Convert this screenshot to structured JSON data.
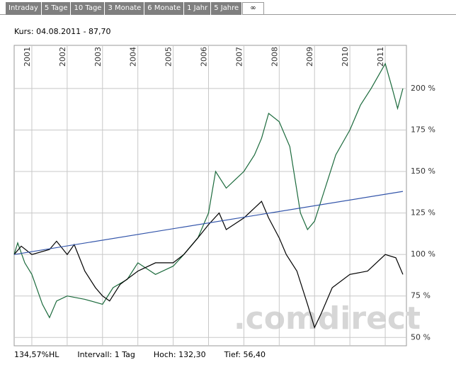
{
  "tabs": [
    "Intraday",
    "5 Tage",
    "10 Tage",
    "3 Monate",
    "6 Monate",
    "1 Jahr",
    "5 Jahre",
    "∞"
  ],
  "header": "Kurs: 04.08.2011 - 87,70",
  "watermark": ".comdirect",
  "footer": [
    "134,57%HL",
    "Intervall: 1 Tag",
    "Hoch: 132,30",
    "Tief: 56,40"
  ],
  "chart_data": {
    "type": "line",
    "xlim": [
      2000.5,
      2011.6
    ],
    "ylim": [
      45,
      226
    ],
    "xticks": [
      2001,
      2002,
      2003,
      2004,
      2005,
      2006,
      2007,
      2008,
      2009,
      2010,
      2011
    ],
    "yticks": [
      {
        "value": 50,
        "label": "50 %"
      },
      {
        "value": 75,
        "label": "75 %"
      },
      {
        "value": 100,
        "label": "100 %"
      },
      {
        "value": 125,
        "label": "125 %"
      },
      {
        "value": 150,
        "label": "150 %"
      },
      {
        "value": 175,
        "label": "175 %"
      },
      {
        "value": 200,
        "label": "200 %"
      }
    ],
    "grid": true,
    "series": [
      {
        "color": "#1b6a3c",
        "x": [
          2000.5,
          2000.6,
          2000.8,
          2001,
          2001.3,
          2001.5,
          2001.7,
          2002,
          2002.5,
          2003,
          2003.3,
          2003.7,
          2004,
          2004.5,
          2005,
          2005.3,
          2005.7,
          2006,
          2006.2,
          2006.5,
          2007,
          2007.3,
          2007.5,
          2007.7,
          2008,
          2008.3,
          2008.6,
          2008.8,
          2009,
          2009.3,
          2009.6,
          2010,
          2010.3,
          2010.6,
          2011,
          2011.2,
          2011.35,
          2011.5
        ],
        "values": [
          100,
          107,
          95,
          88,
          70,
          62,
          72,
          75,
          73,
          70,
          80,
          85,
          95,
          88,
          93,
          100,
          110,
          125,
          150,
          140,
          150,
          160,
          170,
          185,
          180,
          165,
          125,
          115,
          120,
          140,
          160,
          175,
          190,
          200,
          215,
          200,
          188,
          200
        ]
      },
      {
        "color": "#000000",
        "x": [
          2000.5,
          2000.7,
          2001,
          2001.5,
          2001.7,
          2002,
          2002.2,
          2002.5,
          2002.8,
          2003,
          2003.2,
          2003.5,
          2004,
          2004.5,
          2005,
          2005.3,
          2005.7,
          2006,
          2006.3,
          2006.5,
          2007,
          2007.3,
          2007.5,
          2007.7,
          2008,
          2008.2,
          2008.5,
          2008.8,
          2009,
          2009.2,
          2009.5,
          2010,
          2010.5,
          2011,
          2011.3,
          2011.5
        ],
        "values": [
          100,
          105,
          100,
          103,
          108,
          100,
          106,
          90,
          80,
          75,
          72,
          82,
          90,
          95,
          95,
          100,
          110,
          118,
          125,
          115,
          122,
          128,
          132,
          122,
          110,
          100,
          90,
          70,
          56,
          65,
          80,
          88,
          90,
          100,
          98,
          88
        ]
      },
      {
        "color": "#3355aa",
        "x": [
          2000.5,
          2011.5
        ],
        "values": [
          100,
          138
        ]
      }
    ]
  }
}
